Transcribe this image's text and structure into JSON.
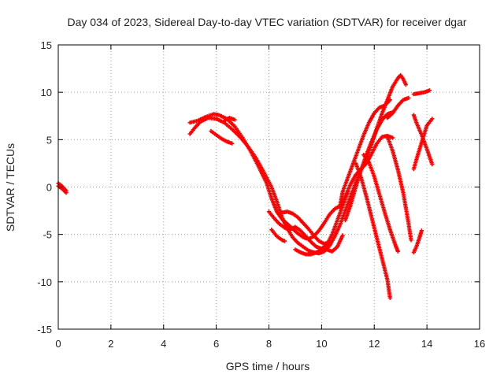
{
  "chart_data": {
    "type": "scatter",
    "title": "Day 034 of 2023, Sidereal Day-to-day VTEC variation (SDTVAR) for receiver dgar",
    "xlabel": "GPS time / hours",
    "ylabel": "SDTVAR / TECUs",
    "xlim": [
      0,
      16
    ],
    "ylim": [
      -15,
      15
    ],
    "xticks": [
      "0",
      "2",
      "4",
      "6",
      "8",
      "10",
      "12",
      "14",
      "16"
    ],
    "yticks": [
      "-15",
      "-10",
      "-5",
      "0",
      "5",
      "10",
      "15"
    ],
    "grid": true,
    "marker": "+",
    "color": "#ff0000",
    "series": [
      {
        "points": [
          [
            0.0,
            0.4
          ],
          [
            0.1,
            0.2
          ],
          [
            0.2,
            -0.1
          ],
          [
            0.3,
            -0.4
          ]
        ]
      },
      {
        "points": [
          [
            0.0,
            0.1
          ],
          [
            0.1,
            -0.1
          ],
          [
            0.2,
            -0.3
          ],
          [
            0.3,
            -0.6
          ]
        ]
      },
      {
        "points": [
          [
            5.0,
            6.8
          ],
          [
            5.3,
            7.0
          ],
          [
            5.6,
            7.4
          ],
          [
            5.9,
            7.7
          ],
          [
            6.1,
            7.6
          ],
          [
            6.4,
            7.2
          ],
          [
            6.7,
            6.4
          ],
          [
            7.0,
            5.2
          ],
          [
            7.3,
            3.8
          ],
          [
            7.6,
            2.2
          ],
          [
            7.9,
            0.5
          ],
          [
            8.1,
            -1.2
          ],
          [
            8.3,
            -2.6
          ],
          [
            8.5,
            -3.4
          ],
          [
            8.7,
            -3.9
          ],
          [
            8.9,
            -4.4
          ],
          [
            9.1,
            -4.9
          ],
          [
            9.3,
            -5.3
          ],
          [
            9.5,
            -5.5
          ],
          [
            9.7,
            -5.2
          ],
          [
            9.9,
            -4.6
          ],
          [
            10.1,
            -3.8
          ],
          [
            10.3,
            -2.9
          ],
          [
            10.5,
            -2.3
          ],
          [
            10.7,
            -2.0
          ],
          [
            10.8,
            -0.5
          ],
          [
            11.0,
            1.0
          ],
          [
            11.2,
            2.5
          ],
          [
            11.4,
            4.0
          ],
          [
            11.6,
            5.5
          ],
          [
            11.8,
            6.8
          ],
          [
            12.0,
            7.8
          ],
          [
            12.2,
            8.4
          ],
          [
            12.4,
            8.6
          ],
          [
            12.6,
            9.2
          ]
        ]
      },
      {
        "points": [
          [
            5.0,
            5.6
          ],
          [
            5.2,
            6.3
          ],
          [
            5.4,
            6.9
          ],
          [
            5.7,
            7.3
          ],
          [
            6.0,
            7.2
          ],
          [
            6.3,
            6.8
          ],
          [
            6.6,
            6.1
          ],
          [
            6.9,
            5.3
          ],
          [
            7.2,
            4.3
          ],
          [
            7.5,
            3.1
          ],
          [
            7.8,
            1.6
          ],
          [
            8.1,
            0.0
          ],
          [
            8.3,
            -1.5
          ],
          [
            8.5,
            -3.2
          ],
          [
            8.7,
            -4.4
          ],
          [
            8.9,
            -5.3
          ],
          [
            9.1,
            -5.9
          ],
          [
            9.3,
            -6.3
          ],
          [
            9.5,
            -6.7
          ],
          [
            9.7,
            -6.9
          ],
          [
            9.9,
            -7.0
          ],
          [
            10.1,
            -6.8
          ],
          [
            10.3,
            -6.2
          ],
          [
            10.5,
            -5.2
          ],
          [
            10.7,
            -4.0
          ],
          [
            10.9,
            -2.5
          ],
          [
            11.1,
            -1.0
          ],
          [
            11.3,
            0.5
          ],
          [
            11.5,
            1.8
          ],
          [
            11.7,
            3.0
          ],
          [
            11.9,
            4.5
          ],
          [
            12.1,
            6.2
          ],
          [
            12.3,
            7.8
          ],
          [
            12.5,
            9.2
          ],
          [
            12.7,
            10.6
          ],
          [
            12.9,
            11.5
          ],
          [
            13.0,
            11.8
          ],
          [
            13.1,
            11.4
          ],
          [
            13.2,
            10.8
          ]
        ]
      },
      {
        "points": [
          [
            5.8,
            5.9
          ],
          [
            6.0,
            5.5
          ],
          [
            6.2,
            5.1
          ],
          [
            6.4,
            4.8
          ],
          [
            6.6,
            4.6
          ]
        ]
      },
      {
        "points": [
          [
            6.3,
            7.0
          ],
          [
            6.5,
            7.3
          ],
          [
            6.7,
            7.1
          ]
        ]
      },
      {
        "points": [
          [
            8.0,
            -2.6
          ],
          [
            8.2,
            -3.3
          ],
          [
            8.4,
            -3.9
          ],
          [
            8.6,
            -4.3
          ],
          [
            8.8,
            -4.5
          ],
          [
            9.0,
            -4.2
          ],
          [
            9.2,
            -4.6
          ],
          [
            9.4,
            -5.2
          ],
          [
            9.6,
            -5.8
          ],
          [
            9.8,
            -6.3
          ],
          [
            10.0,
            -6.5
          ],
          [
            10.2,
            -6.1
          ],
          [
            10.4,
            -5.0
          ],
          [
            10.6,
            -3.5
          ],
          [
            10.8,
            -2.0
          ],
          [
            11.0,
            -0.5
          ]
        ]
      },
      {
        "points": [
          [
            8.1,
            -4.5
          ],
          [
            8.3,
            -5.2
          ],
          [
            8.5,
            -5.6
          ],
          [
            8.6,
            -5.7
          ]
        ]
      },
      {
        "points": [
          [
            8.5,
            -2.7
          ],
          [
            8.7,
            -2.6
          ],
          [
            8.9,
            -2.8
          ],
          [
            9.1,
            -3.2
          ],
          [
            9.3,
            -3.8
          ],
          [
            9.5,
            -4.4
          ],
          [
            9.7,
            -5.1
          ],
          [
            9.9,
            -5.7
          ],
          [
            10.1,
            -6.0
          ],
          [
            10.3,
            -5.8
          ]
        ]
      },
      {
        "points": [
          [
            9.0,
            -6.6
          ],
          [
            9.2,
            -6.9
          ],
          [
            9.4,
            -7.1
          ],
          [
            9.6,
            -7.1
          ],
          [
            9.8,
            -6.9
          ],
          [
            10.0,
            -6.6
          ],
          [
            10.2,
            -6.6
          ],
          [
            10.4,
            -6.8
          ],
          [
            10.6,
            -6.3
          ],
          [
            10.8,
            -5.1
          ]
        ]
      },
      {
        "points": [
          [
            10.7,
            -2.2
          ],
          [
            10.9,
            -1.0
          ],
          [
            11.1,
            0.3
          ],
          [
            11.3,
            1.3
          ],
          [
            11.5,
            1.9
          ],
          [
            11.7,
            2.5
          ],
          [
            11.9,
            3.5
          ],
          [
            12.1,
            4.6
          ],
          [
            12.3,
            5.3
          ],
          [
            12.5,
            5.4
          ],
          [
            12.7,
            5.2
          ]
        ]
      },
      {
        "points": [
          [
            10.9,
            -3.5
          ],
          [
            11.1,
            -1.9
          ],
          [
            11.3,
            0.0
          ],
          [
            11.5,
            1.8
          ],
          [
            11.7,
            3.4
          ],
          [
            11.9,
            4.8
          ],
          [
            12.1,
            6.1
          ],
          [
            12.3,
            7.1
          ],
          [
            12.5,
            7.7
          ],
          [
            12.7,
            7.9
          ]
        ]
      },
      {
        "points": [
          [
            11.3,
            2.5
          ],
          [
            11.5,
            1.0
          ],
          [
            11.7,
            -1.0
          ],
          [
            11.9,
            -3.2
          ],
          [
            12.1,
            -5.4
          ],
          [
            12.3,
            -7.6
          ],
          [
            12.5,
            -9.8
          ],
          [
            12.6,
            -11.7
          ]
        ]
      },
      {
        "points": [
          [
            11.6,
            3.4
          ],
          [
            11.8,
            2.6
          ],
          [
            12.0,
            1.1
          ],
          [
            12.2,
            -0.8
          ],
          [
            12.4,
            -2.7
          ],
          [
            12.6,
            -4.5
          ],
          [
            12.8,
            -6.1
          ],
          [
            12.9,
            -6.8
          ]
        ]
      },
      {
        "points": [
          [
            12.5,
            5.3
          ],
          [
            12.7,
            3.8
          ],
          [
            12.9,
            1.8
          ],
          [
            13.1,
            -0.6
          ],
          [
            13.3,
            -3.8
          ],
          [
            13.4,
            -5.6
          ]
        ]
      },
      {
        "points": [
          [
            12.5,
            7.3
          ],
          [
            12.7,
            7.8
          ],
          [
            12.9,
            8.6
          ],
          [
            13.1,
            9.2
          ],
          [
            13.3,
            9.4
          ]
        ]
      },
      {
        "points": [
          [
            13.5,
            -6.9
          ],
          [
            13.6,
            -6.3
          ],
          [
            13.7,
            -5.5
          ],
          [
            13.8,
            -4.6
          ]
        ]
      },
      {
        "points": [
          [
            13.5,
            7.6
          ],
          [
            13.6,
            6.8
          ],
          [
            13.8,
            5.5
          ],
          [
            14.0,
            4.0
          ],
          [
            14.2,
            2.4
          ]
        ]
      },
      {
        "points": [
          [
            13.5,
            1.9
          ],
          [
            13.6,
            2.9
          ],
          [
            13.8,
            4.7
          ],
          [
            14.0,
            6.5
          ],
          [
            14.2,
            7.2
          ]
        ]
      },
      {
        "points": [
          [
            13.5,
            9.8
          ],
          [
            13.7,
            9.9
          ],
          [
            13.9,
            10.0
          ],
          [
            14.1,
            10.2
          ]
        ]
      }
    ]
  }
}
